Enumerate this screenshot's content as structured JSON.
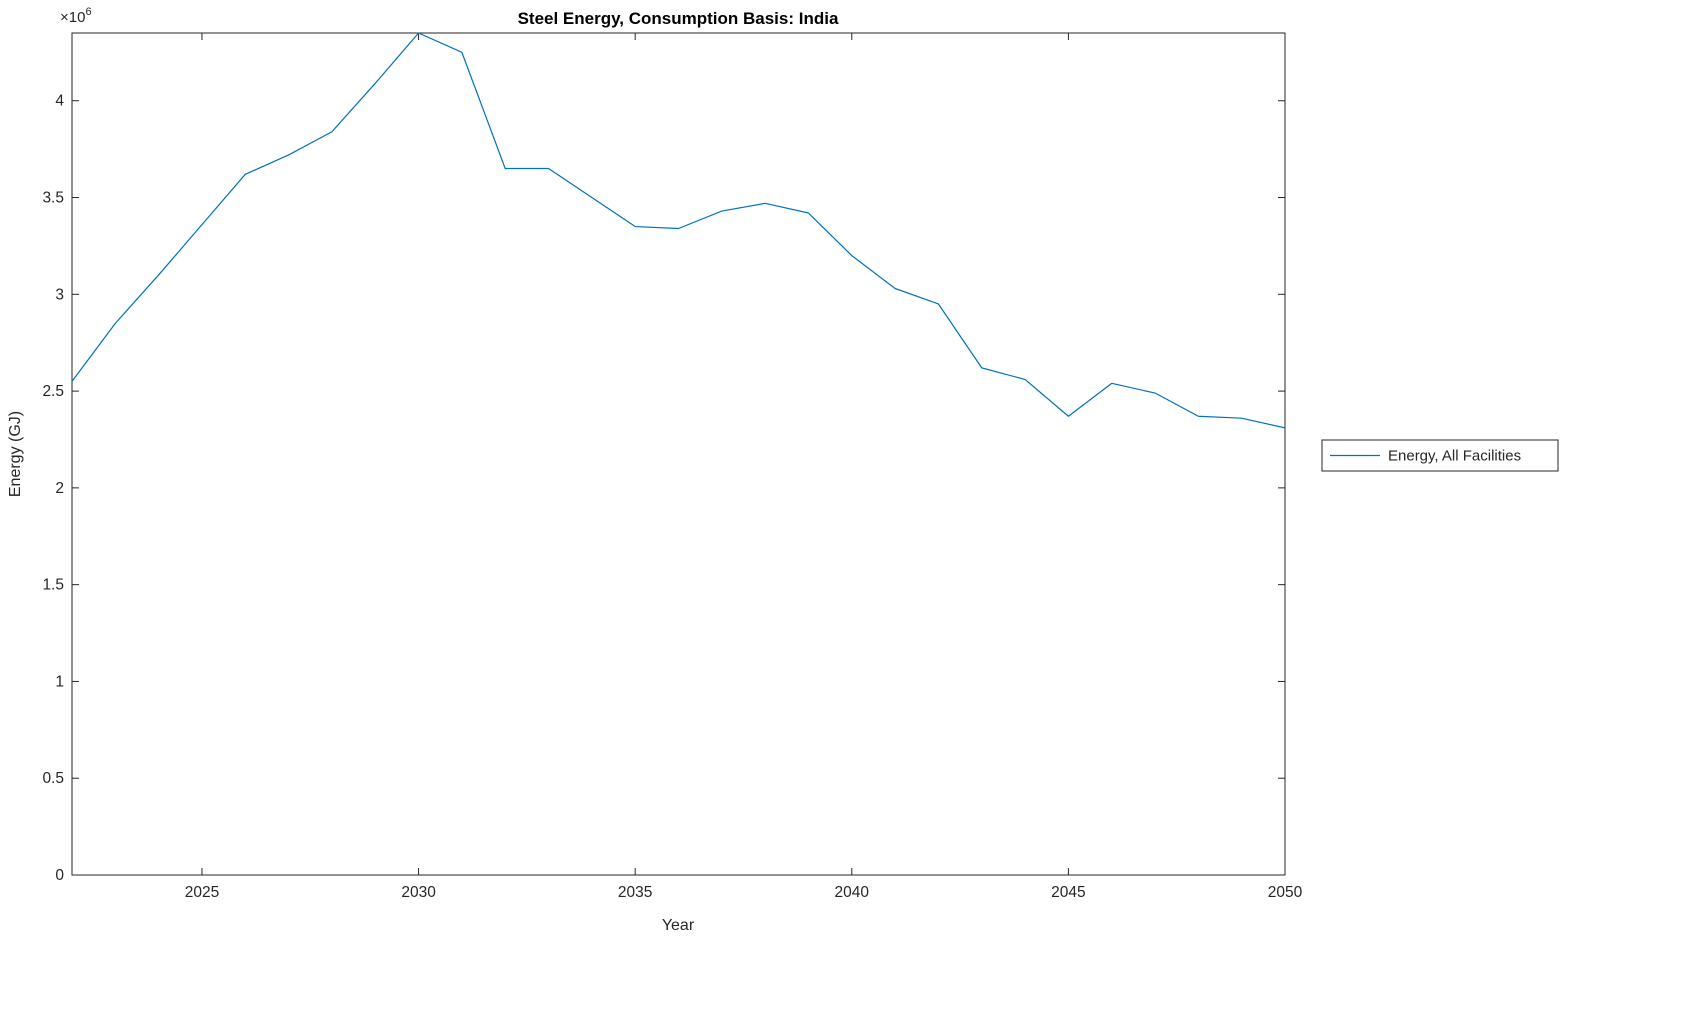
{
  "colors": {
    "background": "#ffffff",
    "axis": "#262626",
    "line": "#0072BD",
    "legend_border": "#262626"
  },
  "chart_data": {
    "type": "line",
    "title": "Steel Energy, Consumption Basis: India",
    "xlabel": "Year",
    "ylabel": "Energy (GJ)",
    "y_multiplier_base": "×10",
    "y_multiplier_exp": "6",
    "xlim": [
      2022,
      2050
    ],
    "ylim": [
      0,
      4350000
    ],
    "xticks": [
      2025,
      2030,
      2035,
      2040,
      2045,
      2050
    ],
    "xtick_labels": [
      "2025",
      "2030",
      "2035",
      "2040",
      "2045",
      "2050"
    ],
    "yticks": [
      0,
      500000,
      1000000,
      1500000,
      2000000,
      2500000,
      3000000,
      3500000,
      4000000
    ],
    "ytick_labels": [
      "0",
      "0.5",
      "1",
      "1.5",
      "2",
      "2.5",
      "3",
      "3.5",
      "4"
    ],
    "grid": false,
    "box": true,
    "legend": {
      "position": "right-outside",
      "entries": [
        "Energy, All Facilities"
      ]
    },
    "series": [
      {
        "name": "Energy, All Facilities",
        "color": "#0072BD",
        "x": [
          2022,
          2023,
          2024,
          2025,
          2026,
          2027,
          2028,
          2029,
          2030,
          2031,
          2032,
          2033,
          2034,
          2035,
          2036,
          2037,
          2038,
          2039,
          2040,
          2041,
          2042,
          2043,
          2044,
          2045,
          2046,
          2047,
          2048,
          2049,
          2050
        ],
        "y": [
          2550000,
          2850000,
          3100000,
          3360000,
          3620000,
          3720000,
          3840000,
          4090000,
          4350000,
          4250000,
          3650000,
          3650000,
          3500000,
          3350000,
          3340000,
          3430000,
          3470000,
          3420000,
          3200000,
          3030000,
          2950000,
          2620000,
          2560000,
          2370000,
          2540000,
          2490000,
          2370000,
          2360000,
          2310000
        ]
      }
    ]
  }
}
